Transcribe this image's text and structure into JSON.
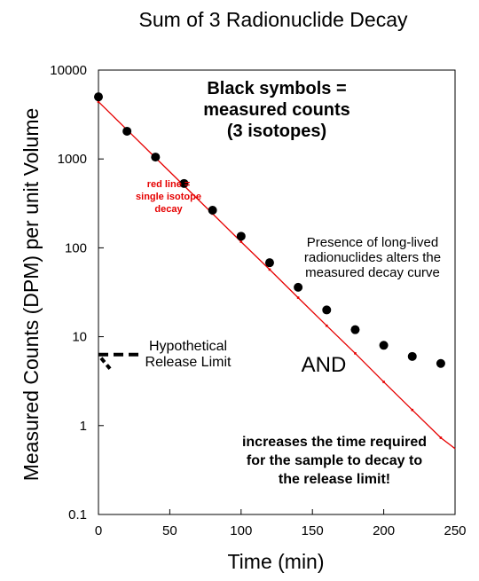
{
  "chart_data": {
    "type": "scatter",
    "title": "Sum of 3 Radionuclide Decay",
    "xlabel": "Time  (min)",
    "ylabel": "Measured Counts (DPM) per unit Volume",
    "xlim": [
      0,
      250
    ],
    "ylim": [
      0.1,
      10000
    ],
    "yscale": "log",
    "grid": false,
    "x_ticks": [
      0,
      50,
      100,
      150,
      200,
      250
    ],
    "x_tick_labels": [
      "0",
      "50",
      "100",
      "150",
      "200",
      "250"
    ],
    "y_ticks": [
      0.1,
      1,
      10,
      100,
      1000,
      10000
    ],
    "y_tick_labels": [
      "0.1",
      "1",
      "10",
      "100",
      "1000",
      "10000"
    ],
    "series": [
      {
        "kind": "points",
        "color": "#000000",
        "x": [
          0,
          20,
          40,
          60,
          80,
          100,
          120,
          140,
          160,
          180,
          200,
          220,
          240
        ],
        "y": [
          5000,
          2050,
          1050,
          530,
          265,
          135,
          68,
          36,
          20,
          12,
          8,
          6,
          5
        ]
      },
      {
        "kind": "line",
        "color": "#e60000",
        "x": [
          0,
          20,
          40,
          60,
          80,
          100,
          120,
          140,
          160,
          180,
          200,
          220,
          240
        ],
        "y": [
          4400,
          2130,
          1030,
          500,
          242,
          117,
          57,
          27.5,
          13.3,
          6.5,
          3.1,
          1.5,
          0.73
        ],
        "line_end": {
          "x": 250,
          "y": 0.55
        }
      }
    ],
    "release_limit": {
      "x": [
        0,
        30
      ],
      "y": 6.3
    },
    "annotations": [
      {
        "lines": [
          "Black symbols =",
          "measured counts",
          "(3 isotopes)"
        ],
        "color": "#000000"
      },
      {
        "lines": [
          "red line =",
          "single isotope",
          "decay"
        ],
        "color": "#e60000"
      },
      {
        "lines": [
          "Presence of long-lived",
          "radionuclides alters the",
          "measured decay curve"
        ],
        "color": "#000000"
      },
      {
        "lines": [
          "Hypothetical",
          "Release  Limit"
        ],
        "color": "#000000"
      },
      {
        "lines": [
          "AND"
        ],
        "color": "#000000"
      },
      {
        "lines": [
          "increases the time required",
          "for the sample to decay to",
          "the release limit!"
        ],
        "color": "#000000"
      }
    ]
  }
}
